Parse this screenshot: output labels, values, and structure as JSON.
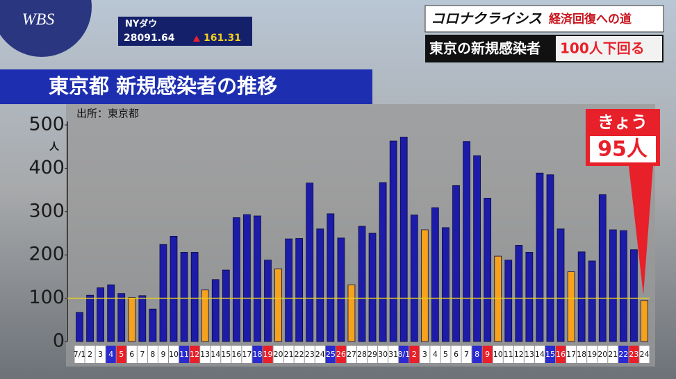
{
  "header": {
    "logo": "WBS",
    "ticker_name": "NYダウ",
    "ticker_value": "28091.64",
    "ticker_change": "161.31",
    "topic": "コロナクライシス",
    "topic_sub": "経済回復への道",
    "headline": "東京の新規感染者",
    "headline_highlight": "100人下回る"
  },
  "chart_data": {
    "type": "bar",
    "title": "東京都 新規感染者の推移",
    "source": "出所：東京都",
    "y_unit": "人",
    "callout": "きょう",
    "callout_value": "95人",
    "categories": [
      "7/1",
      "2",
      "3",
      "4",
      "5",
      "6",
      "7",
      "8",
      "9",
      "10",
      "11",
      "12",
      "13",
      "14",
      "15",
      "16",
      "17",
      "18",
      "19",
      "20",
      "21",
      "22",
      "23",
      "24",
      "25",
      "26",
      "27",
      "28",
      "29",
      "30",
      "31",
      "8/1",
      "2",
      "3",
      "4",
      "5",
      "6",
      "7",
      "8",
      "9",
      "10",
      "11",
      "12",
      "13",
      "14",
      "15",
      "16",
      "17",
      "18",
      "19",
      "20",
      "21",
      "22",
      "23",
      "24"
    ],
    "values": [
      67,
      107,
      124,
      131,
      111,
      102,
      106,
      75,
      224,
      243,
      206,
      206,
      119,
      143,
      165,
      286,
      293,
      290,
      188,
      168,
      237,
      238,
      366,
      260,
      295,
      239,
      131,
      266,
      250,
      367,
      463,
      472,
      292,
      258,
      309,
      263,
      360,
      462,
      429,
      331,
      197,
      188,
      222,
      206,
      389,
      385,
      260,
      161,
      207,
      186,
      339,
      258,
      256,
      212,
      95
    ],
    "colors": [
      "#1c1ca8",
      "#1c1ca8",
      "#1c1ca8",
      "#1c1ca8",
      "#1c1ca8",
      "#f6a21c",
      "#1c1ca8",
      "#1c1ca8",
      "#1c1ca8",
      "#1c1ca8",
      "#1c1ca8",
      "#1c1ca8",
      "#f6a21c",
      "#1c1ca8",
      "#1c1ca8",
      "#1c1ca8",
      "#1c1ca8",
      "#1c1ca8",
      "#1c1ca8",
      "#f6a21c",
      "#1c1ca8",
      "#1c1ca8",
      "#1c1ca8",
      "#1c1ca8",
      "#1c1ca8",
      "#1c1ca8",
      "#f6a21c",
      "#1c1ca8",
      "#1c1ca8",
      "#1c1ca8",
      "#1c1ca8",
      "#1c1ca8",
      "#1c1ca8",
      "#f6a21c",
      "#1c1ca8",
      "#1c1ca8",
      "#1c1ca8",
      "#1c1ca8",
      "#1c1ca8",
      "#1c1ca8",
      "#f6a21c",
      "#1c1ca8",
      "#1c1ca8",
      "#1c1ca8",
      "#1c1ca8",
      "#1c1ca8",
      "#1c1ca8",
      "#f6a21c",
      "#1c1ca8",
      "#1c1ca8",
      "#1c1ca8",
      "#1c1ca8",
      "#1c1ca8",
      "#1c1ca8",
      "#f6a21c"
    ],
    "label_colors": [
      "#ffffff",
      "#ffffff",
      "#ffffff",
      "#2a2ad0",
      "#e8202a",
      "#ffffff",
      "#ffffff",
      "#ffffff",
      "#ffffff",
      "#ffffff",
      "#2a2ad0",
      "#e8202a",
      "#ffffff",
      "#ffffff",
      "#ffffff",
      "#ffffff",
      "#ffffff",
      "#2a2ad0",
      "#e8202a",
      "#ffffff",
      "#ffffff",
      "#ffffff",
      "#ffffff",
      "#ffffff",
      "#2a2ad0",
      "#e8202a",
      "#ffffff",
      "#ffffff",
      "#ffffff",
      "#ffffff",
      "#ffffff",
      "#2a2ad0",
      "#e8202a",
      "#ffffff",
      "#ffffff",
      "#ffffff",
      "#ffffff",
      "#ffffff",
      "#2a2ad0",
      "#e8202a",
      "#ffffff",
      "#ffffff",
      "#ffffff",
      "#ffffff",
      "#ffffff",
      "#2a2ad0",
      "#e8202a",
      "#ffffff",
      "#ffffff",
      "#ffffff",
      "#ffffff",
      "#ffffff",
      "#2a2ad0",
      "#e8202a",
      "#ffffff"
    ],
    "ylim": [
      0,
      500
    ],
    "yticks": [
      0,
      100,
      200,
      300,
      400,
      500
    ],
    "ref_line": 100,
    "ref_color": "#e8d21c"
  }
}
